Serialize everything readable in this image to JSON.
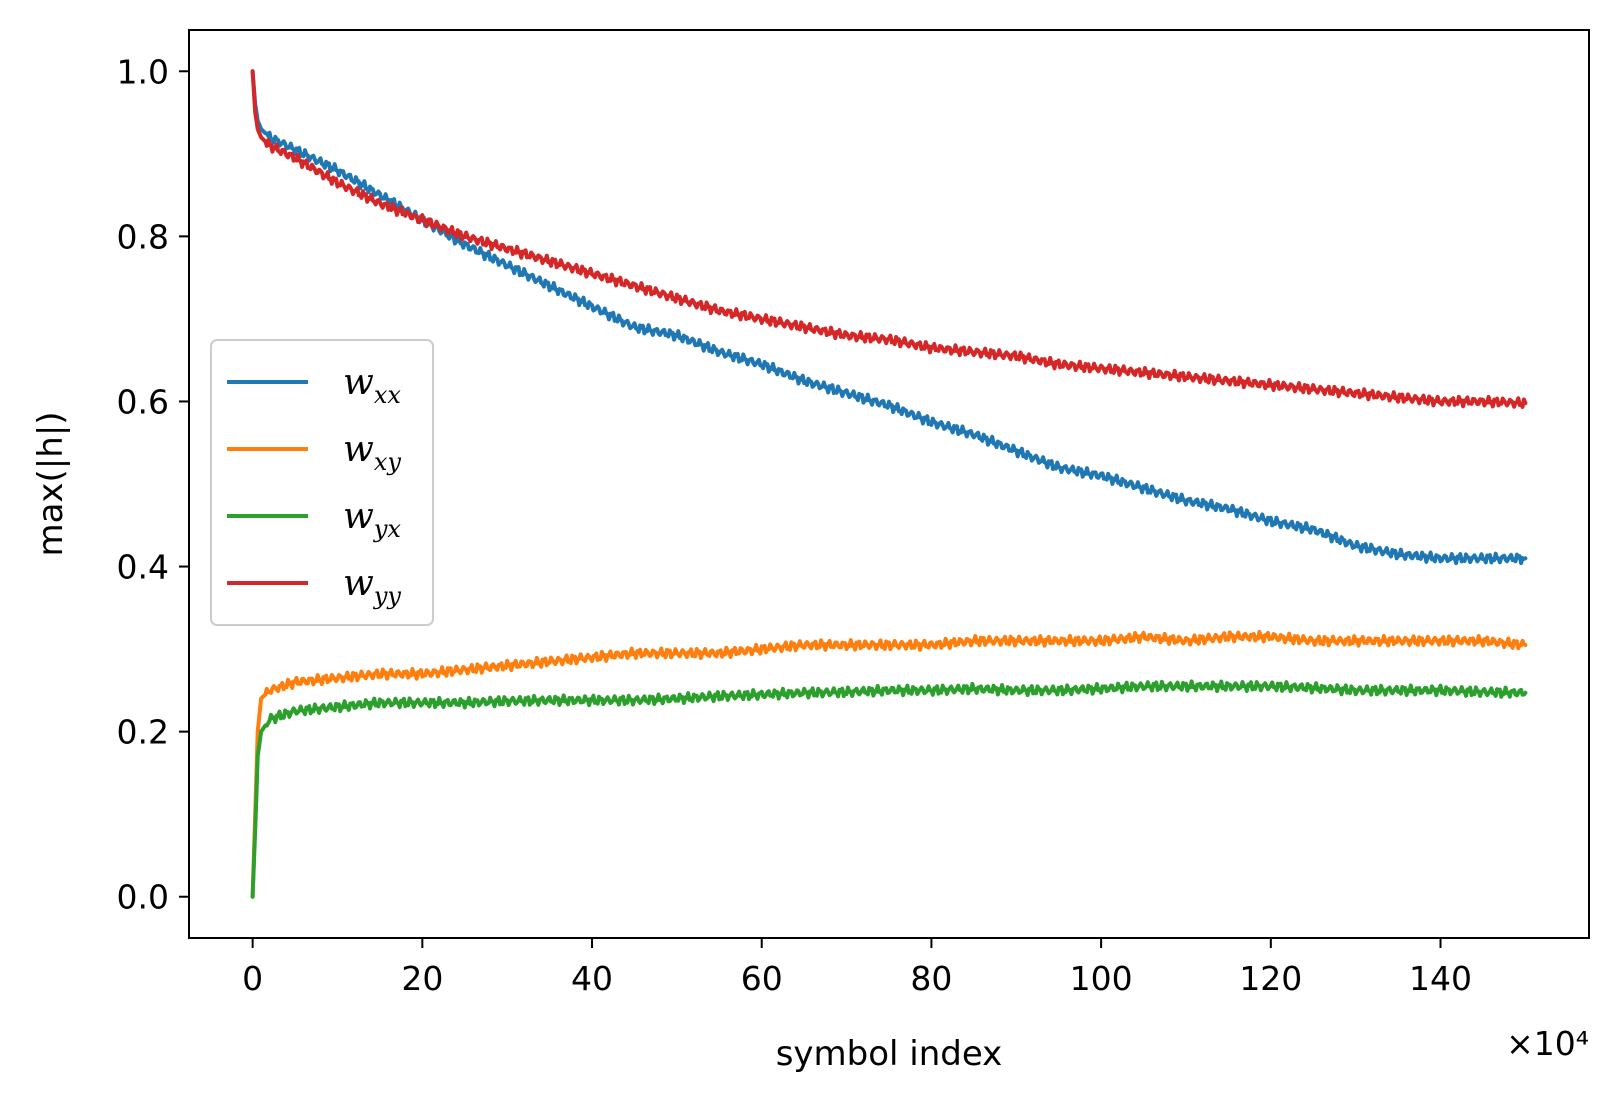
{
  "chart_data": {
    "type": "line",
    "title": "",
    "xlabel": "symbol index",
    "ylabel": "max(|h|)",
    "x_scale_label": "×10⁴",
    "xlim": [
      -7.5,
      157.5
    ],
    "ylim": [
      -0.05,
      1.05
    ],
    "x_ticks": [
      0,
      20,
      40,
      60,
      80,
      100,
      120,
      140
    ],
    "y_ticks": [
      0.0,
      0.2,
      0.4,
      0.6,
      0.8,
      1.0
    ],
    "y_tick_labels": [
      "0.0",
      "0.2",
      "0.4",
      "0.6",
      "0.8",
      "1.0"
    ],
    "grid": false,
    "legend_position": "center-left",
    "series": [
      {
        "name": "wxx",
        "label_main": "w",
        "label_sub": "xx",
        "color": "#1f77b4",
        "x": [
          0,
          0.3,
          0.6,
          1,
          2,
          5,
          10,
          15,
          20,
          25,
          30,
          35,
          40,
          45,
          50,
          55,
          60,
          65,
          70,
          75,
          80,
          85,
          90,
          95,
          100,
          105,
          110,
          115,
          120,
          125,
          130,
          135,
          140,
          145,
          150
        ],
        "y": [
          1.0,
          0.96,
          0.94,
          0.93,
          0.92,
          0.905,
          0.88,
          0.85,
          0.82,
          0.79,
          0.765,
          0.74,
          0.715,
          0.69,
          0.68,
          0.66,
          0.645,
          0.625,
          0.61,
          0.595,
          0.575,
          0.56,
          0.54,
          0.52,
          0.51,
          0.495,
          0.48,
          0.47,
          0.455,
          0.445,
          0.425,
          0.415,
          0.41,
          0.41,
          0.41
        ]
      },
      {
        "name": "wxy",
        "label_main": "w",
        "label_sub": "xy",
        "color": "#ff7f0e",
        "x": [
          0,
          0.3,
          0.6,
          1,
          2,
          5,
          10,
          15,
          20,
          25,
          30,
          35,
          40,
          45,
          50,
          55,
          60,
          65,
          70,
          75,
          80,
          85,
          90,
          95,
          100,
          105,
          110,
          115,
          120,
          125,
          130,
          135,
          140,
          145,
          150
        ],
        "y": [
          0.0,
          0.1,
          0.2,
          0.24,
          0.25,
          0.26,
          0.265,
          0.27,
          0.27,
          0.275,
          0.28,
          0.285,
          0.29,
          0.295,
          0.295,
          0.295,
          0.3,
          0.305,
          0.305,
          0.305,
          0.305,
          0.31,
          0.31,
          0.31,
          0.31,
          0.315,
          0.31,
          0.315,
          0.315,
          0.31,
          0.31,
          0.31,
          0.31,
          0.31,
          0.305
        ]
      },
      {
        "name": "wyx",
        "label_main": "w",
        "label_sub": "yx",
        "color": "#2ca02c",
        "x": [
          0,
          0.3,
          0.6,
          1,
          2,
          5,
          10,
          15,
          20,
          25,
          30,
          35,
          40,
          45,
          50,
          55,
          60,
          65,
          70,
          75,
          80,
          85,
          90,
          95,
          100,
          105,
          110,
          115,
          120,
          125,
          130,
          135,
          140,
          145,
          150
        ],
        "y": [
          0.0,
          0.08,
          0.17,
          0.2,
          0.215,
          0.225,
          0.23,
          0.235,
          0.235,
          0.235,
          0.237,
          0.238,
          0.238,
          0.238,
          0.24,
          0.243,
          0.245,
          0.247,
          0.248,
          0.25,
          0.25,
          0.252,
          0.25,
          0.25,
          0.252,
          0.255,
          0.255,
          0.255,
          0.255,
          0.253,
          0.25,
          0.25,
          0.25,
          0.248,
          0.247
        ]
      },
      {
        "name": "wyy",
        "label_main": "w",
        "label_sub": "yy",
        "color": "#d62728",
        "x": [
          0,
          0.3,
          0.6,
          1,
          2,
          5,
          10,
          15,
          20,
          25,
          30,
          35,
          40,
          45,
          50,
          55,
          60,
          65,
          70,
          75,
          80,
          85,
          90,
          95,
          100,
          105,
          110,
          115,
          120,
          125,
          130,
          135,
          140,
          145,
          150
        ],
        "y": [
          1.0,
          0.95,
          0.93,
          0.92,
          0.91,
          0.895,
          0.865,
          0.84,
          0.82,
          0.8,
          0.785,
          0.77,
          0.755,
          0.74,
          0.725,
          0.71,
          0.7,
          0.69,
          0.68,
          0.675,
          0.665,
          0.66,
          0.655,
          0.645,
          0.64,
          0.635,
          0.63,
          0.625,
          0.62,
          0.615,
          0.61,
          0.605,
          0.6,
          0.6,
          0.598
        ]
      }
    ]
  }
}
